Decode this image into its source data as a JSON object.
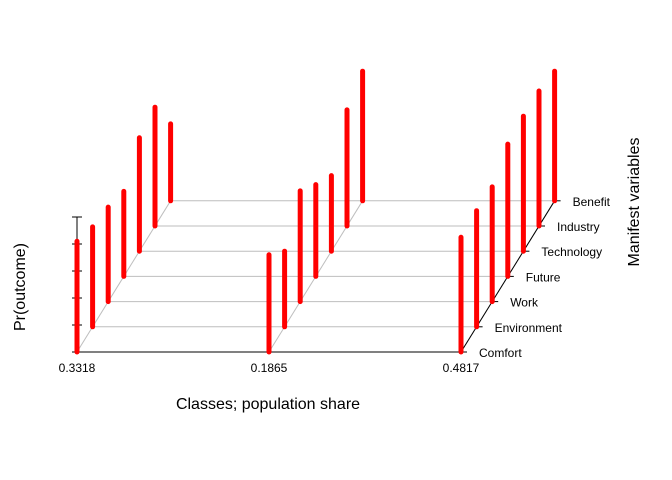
{
  "chart_data": {
    "type": "bar",
    "title": "",
    "xlabel": "Classes; population share",
    "ylabel": "Pr(outcome)",
    "zlabel": "Manifest variables",
    "ylim": [
      0,
      1
    ],
    "grid": true,
    "bar_color": "#ff0000",
    "classes": [
      "0.3318",
      "0.1865",
      "0.4817"
    ],
    "variables": [
      "Comfort",
      "Environment",
      "Work",
      "Future",
      "Technology",
      "Industry",
      "Benefit"
    ],
    "series": [
      {
        "values": [
          0.82,
          0.74,
          0.7,
          0.63,
          0.84,
          0.88,
          0.57
        ]
      },
      {
        "values": [
          0.72,
          0.56,
          0.82,
          0.68,
          0.56,
          0.86,
          0.96
        ]
      },
      {
        "values": [
          0.85,
          0.86,
          0.85,
          0.98,
          1.0,
          1.0,
          0.96
        ]
      }
    ]
  }
}
